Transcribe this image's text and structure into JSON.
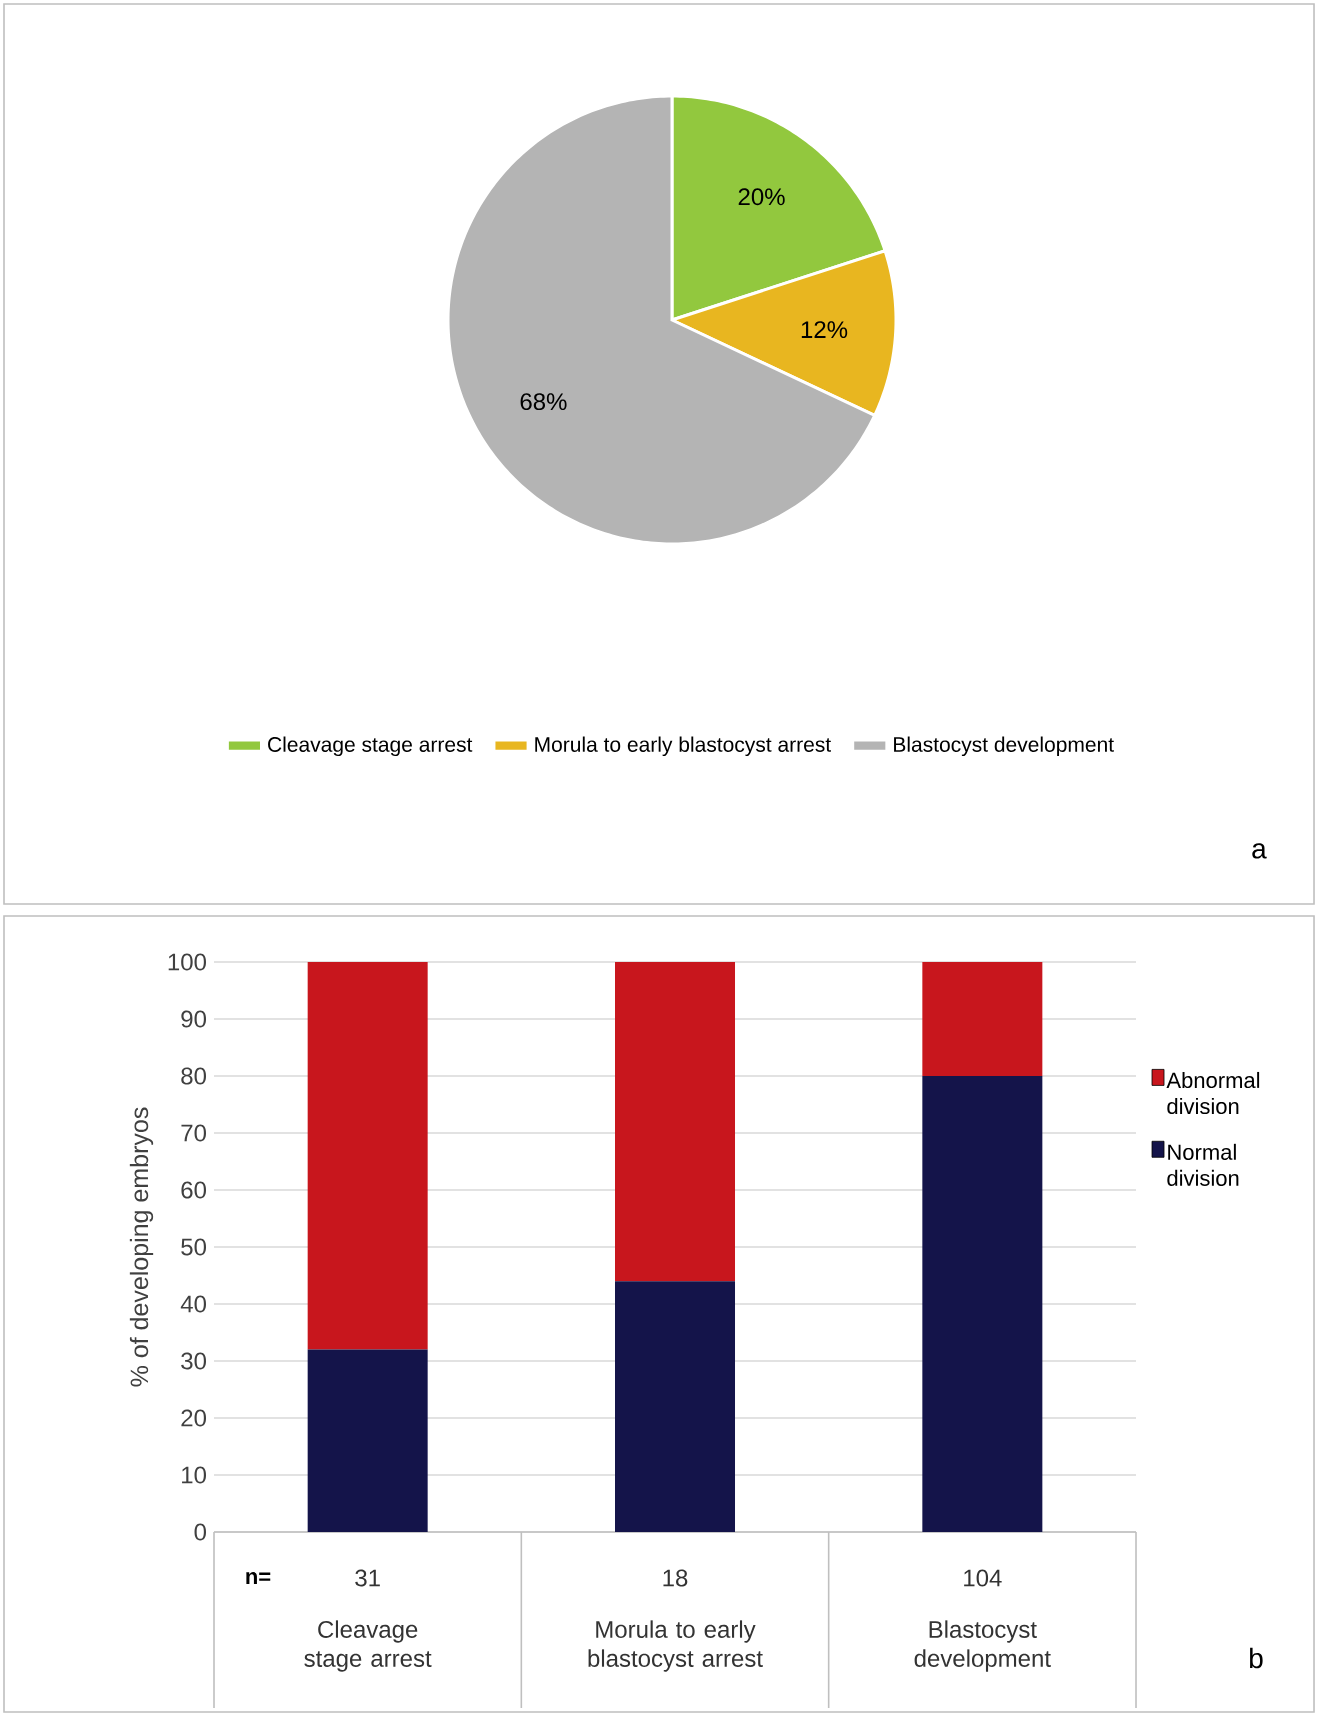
{
  "chart_data": [
    {
      "type": "pie",
      "categories": [
        "Cleavage stage arrest",
        "Morula to early blastocyst arrest",
        "Blastocyst development"
      ],
      "values": [
        20,
        12,
        68
      ],
      "colors": [
        "#92c83e",
        "#e8b620",
        "#b4b4b4"
      ],
      "value_labels": [
        "20%",
        "12%",
        "68%"
      ],
      "legend": "bottom",
      "annotations": [
        "a"
      ]
    },
    {
      "type": "bar",
      "stacked": true,
      "categories": [
        "Cleavage stage arrest",
        "Morula to early blastocyst arrest",
        "Blastocyst development"
      ],
      "series": [
        {
          "name": "Normal division",
          "color": "#14144a",
          "values": [
            32,
            44,
            80
          ]
        },
        {
          "name": "Abnormal division",
          "color": "#c8161d",
          "values": [
            68,
            56,
            20
          ]
        }
      ],
      "ylabel": "% of developing embryos",
      "ylim": [
        0,
        100
      ],
      "yticks": [
        0,
        10,
        20,
        30,
        40,
        50,
        60,
        70,
        80,
        90,
        100
      ],
      "grid": "y",
      "legend": "right",
      "annotations": [
        "n=",
        "31",
        "18",
        "104",
        "b"
      ]
    }
  ]
}
